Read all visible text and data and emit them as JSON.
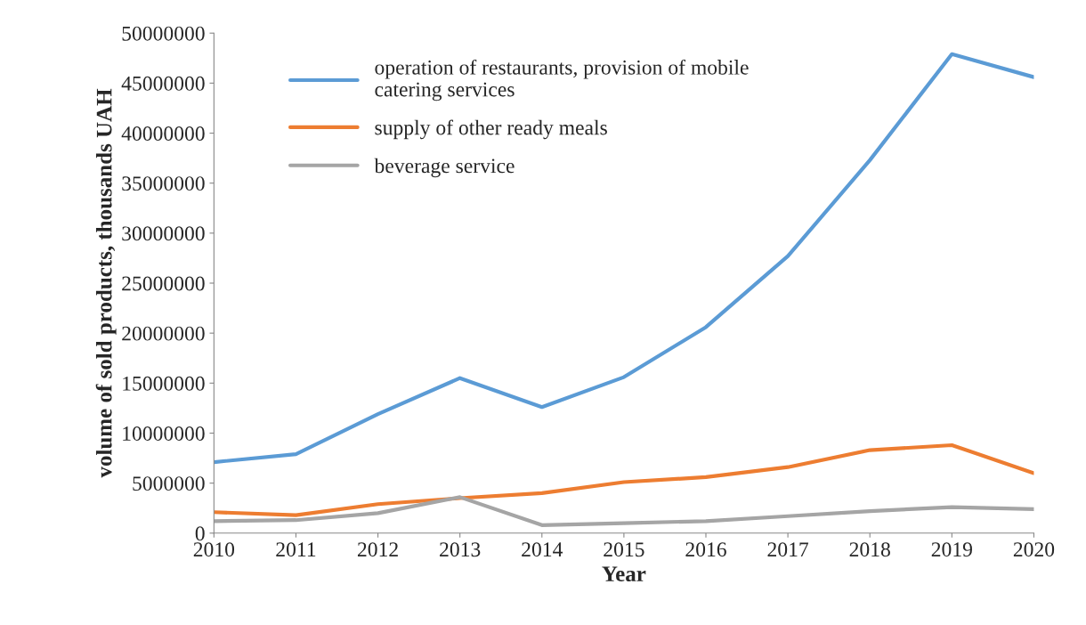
{
  "chart_data": {
    "type": "line",
    "xlabel": "Year",
    "ylabel": "volume of sold products, thousands UAH",
    "x": [
      2010,
      2011,
      2012,
      2013,
      2014,
      2015,
      2016,
      2017,
      2018,
      2019,
      2020
    ],
    "series": [
      {
        "name": "operation of restaurants, provision of mobile\ncatering services",
        "color": "#5b9bd5",
        "values": [
          7100000,
          7900000,
          11900000,
          15500000,
          12600000,
          15600000,
          20600000,
          27700000,
          37300000,
          47900000,
          45600000
        ]
      },
      {
        "name": "supply of other ready meals",
        "color": "#ed7d31",
        "values": [
          2100000,
          1800000,
          2900000,
          3500000,
          4000000,
          5100000,
          5600000,
          6600000,
          8300000,
          8800000,
          6000000
        ]
      },
      {
        "name": "beverage service",
        "color": "#a5a5a5",
        "values": [
          1200000,
          1300000,
          2000000,
          3600000,
          800000,
          1000000,
          1200000,
          1700000,
          2200000,
          2600000,
          2400000
        ]
      }
    ],
    "xlim": [
      2010,
      2020
    ],
    "xticks": [
      2010,
      2011,
      2012,
      2013,
      2014,
      2015,
      2016,
      2017,
      2018,
      2019,
      2020
    ],
    "ylim": [
      0,
      50000000
    ],
    "yticks": [
      0,
      5000000,
      10000000,
      15000000,
      20000000,
      25000000,
      30000000,
      35000000,
      40000000,
      45000000,
      50000000
    ],
    "grid": false,
    "legend": "top left",
    "marker": "none",
    "line_style": "solid"
  }
}
